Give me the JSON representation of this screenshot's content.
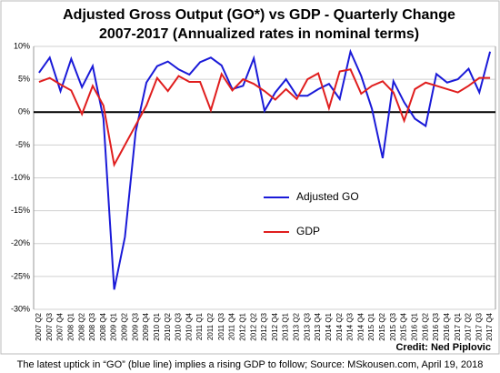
{
  "chart_data": {
    "type": "line",
    "title": "Adjusted Gross Output (GO*) vs GDP - Quarterly Change",
    "subtitle": "2007-2017 (Annualized rates in nominal terms)",
    "credit": "Credit: Ned Piplovic",
    "caption": "The latest uptick in “GO” (blue line) implies a rising GDP to follow; Source: MSkousen.com, April 19, 2018",
    "categories": [
      "2007 Q2",
      "2007 Q3",
      "2007 Q4",
      "2008 Q1",
      "2008 Q2",
      "2008 Q3",
      "2008 Q4",
      "2009 Q1",
      "2009 Q2",
      "2009 Q3",
      "2009 Q4",
      "2010 Q1",
      "2010 Q2",
      "2010 Q3",
      "2010 Q4",
      "2011 Q1",
      "2011 Q2",
      "2011 Q3",
      "2011 Q4",
      "2012 Q1",
      "2012 Q2",
      "2012 Q3",
      "2012 Q4",
      "2013 Q1",
      "2013 Q2",
      "2013 Q3",
      "2013 Q4",
      "2014 Q1",
      "2014 Q2",
      "2014 Q3",
      "2014 Q4",
      "2015 Q1",
      "2015 Q2",
      "2015 Q3",
      "2015 Q4",
      "2016 Q1",
      "2016 Q2",
      "2016 Q3",
      "2016 Q4",
      "2017 Q1",
      "2017 Q2",
      "2017 Q3",
      "2017 Q4"
    ],
    "series": [
      {
        "name": "Adjusted GO",
        "color": "#1a1ad8",
        "values": [
          6,
          8.3,
          3.2,
          8.1,
          3.8,
          7,
          -1,
          -27,
          -19,
          -3,
          4.5,
          7,
          7.7,
          6.5,
          5.7,
          7.6,
          8.3,
          7.1,
          3.5,
          4,
          8.2,
          0.2,
          3,
          5,
          2.5,
          2.5,
          3.5,
          4.3,
          2,
          9.2,
          5.5,
          0.5,
          -7,
          4.7,
          1.5,
          -1,
          -2.1,
          5.8,
          4.5,
          5,
          6.6,
          3,
          9.2
        ]
      },
      {
        "name": "GDP",
        "color": "#e01e1e",
        "values": [
          4.6,
          5.2,
          4.2,
          3.3,
          -0.3,
          4,
          1,
          -8,
          -5,
          -2,
          1,
          5.2,
          3.2,
          5.5,
          4.6,
          4.6,
          0.3,
          5.8,
          3.3,
          5,
          4.3,
          3.2,
          1.9,
          3.5,
          2,
          5,
          5.9,
          0.6,
          6.2,
          6.5,
          2.8,
          4,
          4.7,
          3,
          -1.3,
          3.5,
          4.5,
          4,
          3.5,
          3,
          4,
          5.2,
          5.2
        ]
      }
    ],
    "ylim": [
      -30,
      10
    ],
    "yticks": [
      {
        "value": -30,
        "label": "-30%"
      },
      {
        "value": -25,
        "label": "-25%"
      },
      {
        "value": -20,
        "label": "-20%"
      },
      {
        "value": -15,
        "label": "-15%"
      },
      {
        "value": -10,
        "label": "-10%"
      },
      {
        "value": -5,
        "label": "-5%"
      },
      {
        "value": 0,
        "label": "0%"
      },
      {
        "value": 5,
        "label": "5%"
      },
      {
        "value": 10,
        "label": "10%"
      }
    ],
    "grid": true
  }
}
